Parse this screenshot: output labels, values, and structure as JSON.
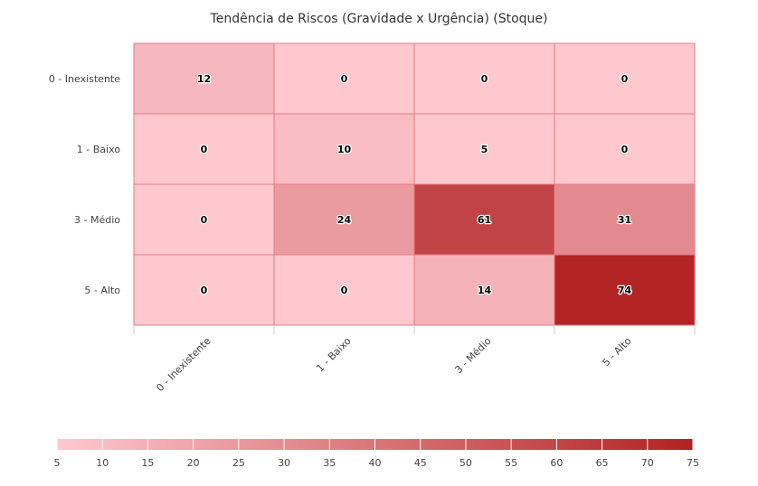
{
  "chart_data": {
    "type": "heatmap",
    "title": "Tendência de Riscos (Gravidade x Urgência) (Stoque)",
    "xlabel": "",
    "ylabel": "",
    "x_categories": [
      "0 - Inexistente",
      "1 - Baixo",
      "3 - Médio",
      "5 - Alto"
    ],
    "y_categories": [
      "0 - Inexistente",
      "1 - Baixo",
      "3 - Médio",
      "5 - Alto"
    ],
    "values": [
      [
        12,
        0,
        0,
        0
      ],
      [
        0,
        10,
        5,
        0
      ],
      [
        0,
        24,
        61,
        31
      ],
      [
        0,
        0,
        14,
        74
      ]
    ],
    "color_scale": {
      "min": 5,
      "max": 75,
      "ticks": [
        5,
        10,
        15,
        20,
        25,
        30,
        35,
        40,
        45,
        50,
        55,
        60,
        65,
        70,
        75
      ],
      "min_color": "#ffc8cf",
      "max_color": "#b22222"
    },
    "cell_border_color": "#e57a85",
    "legend_position": "bottom"
  }
}
